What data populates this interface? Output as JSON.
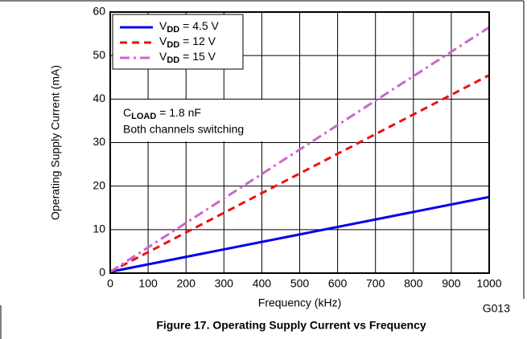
{
  "chart_data": {
    "type": "line",
    "caption": "Figure 17. Operating Supply Current vs Frequency",
    "figure_code": "G013",
    "x_label": "Frequency (kHz)",
    "y_label": "Operating Supply Current (mA)",
    "x": [
      0,
      1000
    ],
    "series": [
      {
        "name": "VDD = 4.5 V",
        "color": "#0000ee",
        "dash": "solid",
        "values": [
          0.3,
          17.5
        ]
      },
      {
        "name": "VDD = 12 V",
        "color": "#ee1111",
        "dash": "dashed",
        "values": [
          0.3,
          45.5
        ]
      },
      {
        "name": "VDD = 15 V",
        "color": "#cc66cc",
        "dash": "dashdot",
        "values": [
          0.3,
          56.5
        ]
      }
    ],
    "annotations": [
      "CLOAD = 1.8 nF",
      "Both channels switching"
    ],
    "xlim": [
      0,
      1000
    ],
    "xticks": [
      0,
      100,
      200,
      300,
      400,
      500,
      600,
      700,
      800,
      900,
      1000
    ],
    "ylim": [
      0,
      60
    ],
    "yticks": [
      0,
      10,
      20,
      30,
      40,
      50,
      60
    ],
    "grid": true,
    "legend": "upper left"
  }
}
